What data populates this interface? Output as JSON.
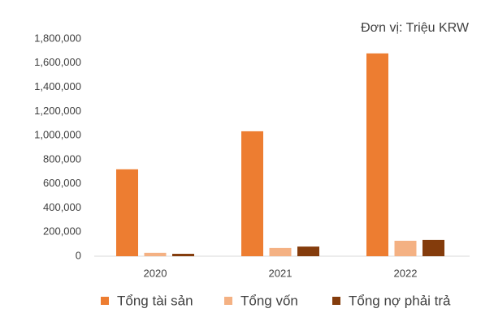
{
  "chart_data": {
    "type": "bar",
    "annotation": "Đơn vị: Triệu KRW",
    "categories": [
      "2020",
      "2021",
      "2022"
    ],
    "series": [
      {
        "name": "Tổng tài sản",
        "color": "#ed7d31",
        "values": [
          720000,
          1035000,
          1680000
        ]
      },
      {
        "name": "Tổng vốn",
        "color": "#f4b183",
        "values": [
          28000,
          68000,
          128000
        ]
      },
      {
        "name": "Tổng nợ phải trả",
        "color": "#843c0c",
        "values": [
          20000,
          80000,
          135000
        ]
      }
    ],
    "ylim": [
      0,
      1800000
    ],
    "yticks": [
      0,
      {
        "value": 200000,
        "label": "200,000"
      },
      {
        "value": 400000,
        "label": "400,000"
      },
      {
        "value": 600000,
        "label": "600,000"
      },
      {
        "value": 800000,
        "label": "800,000"
      },
      {
        "value": 1000000,
        "label": "1,000,000"
      },
      {
        "value": 1200000,
        "label": "1,200,000"
      },
      {
        "value": 1400000,
        "label": "1,400,000"
      },
      {
        "value": 1600000,
        "label": "1,600,000"
      },
      {
        "value": 1800000,
        "label": "1,800,000"
      }
    ],
    "grid": false,
    "legend": "bottom"
  }
}
